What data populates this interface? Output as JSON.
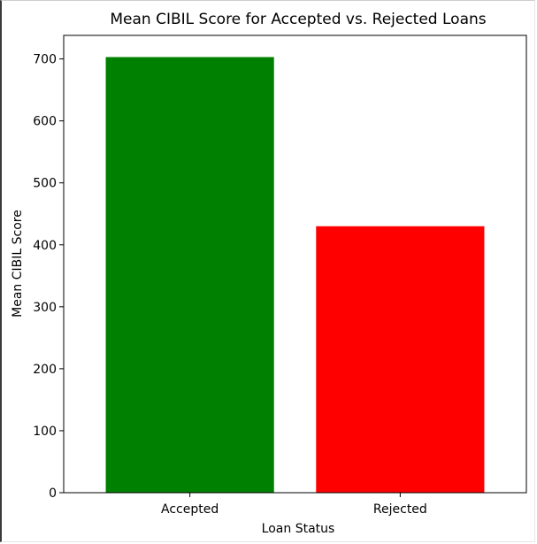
{
  "chart_data": {
    "type": "bar",
    "title": "Mean CIBIL Score for Accepted vs. Rejected Loans",
    "xlabel": "Loan Status",
    "ylabel": "Mean CIBIL Score",
    "categories": [
      "Accepted",
      "Rejected"
    ],
    "values": [
      703,
      430
    ],
    "colors": [
      "#008000",
      "#ff0000"
    ],
    "ylim": [
      0,
      738
    ],
    "yticks": [
      0,
      100,
      200,
      300,
      400,
      500,
      600,
      700
    ],
    "grid": false,
    "legend": "none"
  }
}
